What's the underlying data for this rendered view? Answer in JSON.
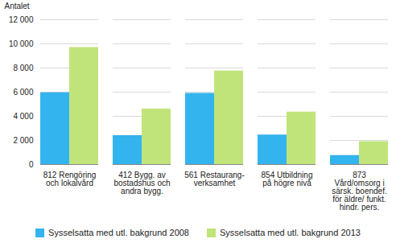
{
  "chart_data": {
    "type": "bar",
    "y_label": "Antalet",
    "categories": [
      "812 Rengöring\noch lokalvård",
      "412 Bygg. av\nbostadshus och\nandra bygg.",
      "561 Restaurang-\nverksamhet",
      "854 Utbildning\npå högre nivå",
      "873\nVård/omsorg i\nsärsk. boendef.\nför äldre/ funkt.\nhindr. pers."
    ],
    "series": [
      {
        "name": "Sysselsatta med utl. bakgrund 2008",
        "color": "#33b4ee",
        "values": [
          5950,
          2400,
          5900,
          2450,
          750
        ]
      },
      {
        "name": "Sysselsatta med utl. bakgrund 2013",
        "color": "#c0e47a",
        "values": [
          9700,
          4600,
          7750,
          4350,
          1900
        ]
      }
    ],
    "ylim": [
      0,
      12000
    ],
    "yticks": [
      0,
      {
        "value": 2000,
        "label": "2 000"
      },
      {
        "value": 4000,
        "label": "4 000"
      },
      {
        "value": 6000,
        "label": "6 000"
      },
      {
        "value": 8000,
        "label": "8 000"
      },
      {
        "value": 10000,
        "label": "10 000"
      },
      {
        "value": 12000,
        "label": "12 000"
      }
    ],
    "grid": true,
    "legend": "bottom"
  }
}
